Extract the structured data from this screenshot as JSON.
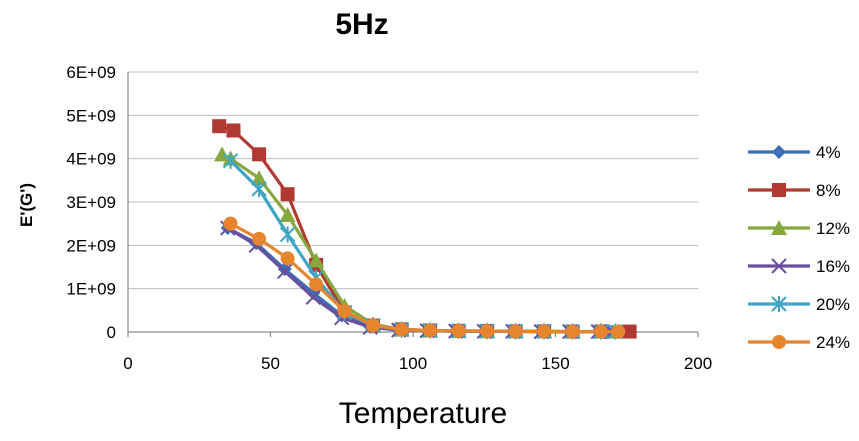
{
  "chart_data": {
    "type": "line",
    "title": "5Hz",
    "xlabel": "Temperature",
    "ylabel": "E'(G')",
    "xlim": [
      0,
      200
    ],
    "ylim": [
      0,
      6000000000
    ],
    "x_ticks": [
      "0",
      "50",
      "100",
      "150",
      "200"
    ],
    "y_ticks": [
      "0",
      "1E+09",
      "2E+09",
      "3E+09",
      "4E+09",
      "5E+09",
      "6E+09"
    ],
    "grid": "horizontal",
    "legend_position": "right",
    "series": [
      {
        "name": "4%",
        "color": "#3a6fb6",
        "marker": "diamond",
        "x": [
          35,
          45,
          55,
          65,
          75,
          85,
          95,
          105,
          115,
          125,
          135,
          145,
          155,
          165,
          170
        ],
        "y": [
          2400000000,
          2050000000,
          1450000000,
          900000000,
          380000000,
          120000000,
          50000000,
          30000000,
          20000000,
          15000000,
          15000000,
          10000000,
          10000000,
          10000000,
          10000000
        ]
      },
      {
        "name": "8%",
        "color": "#b03a32",
        "marker": "square",
        "x": [
          32,
          37,
          46,
          56,
          66,
          76,
          86,
          96,
          106,
          116,
          126,
          136,
          146,
          156,
          166,
          176
        ],
        "y": [
          4750000000,
          4650000000,
          4100000000,
          3180000000,
          1550000000,
          450000000,
          150000000,
          60000000,
          35000000,
          25000000,
          20000000,
          15000000,
          15000000,
          10000000,
          10000000,
          10000000
        ]
      },
      {
        "name": "12%",
        "color": "#86a83e",
        "marker": "triangle",
        "x": [
          33,
          36,
          46,
          56,
          66,
          76,
          86,
          96,
          106,
          116,
          126,
          136,
          146,
          156,
          166,
          171
        ],
        "y": [
          4100000000,
          4000000000,
          3550000000,
          2700000000,
          1650000000,
          600000000,
          180000000,
          60000000,
          35000000,
          25000000,
          20000000,
          15000000,
          15000000,
          10000000,
          10000000,
          10000000
        ]
      },
      {
        "name": "16%",
        "color": "#6a4fa0",
        "marker": "x",
        "x": [
          35,
          45,
          55,
          65,
          75,
          85,
          95,
          105,
          115,
          125,
          135,
          145,
          155,
          165,
          170
        ],
        "y": [
          2400000000,
          2000000000,
          1400000000,
          800000000,
          330000000,
          110000000,
          45000000,
          30000000,
          20000000,
          15000000,
          15000000,
          10000000,
          10000000,
          10000000,
          10000000
        ]
      },
      {
        "name": "20%",
        "color": "#3ea6c4",
        "marker": "asterisk",
        "x": [
          36,
          46,
          56,
          66,
          76,
          86,
          96,
          106,
          116,
          126,
          136,
          146,
          156,
          166,
          171
        ],
        "y": [
          3950000000,
          3300000000,
          2250000000,
          1250000000,
          450000000,
          150000000,
          55000000,
          35000000,
          25000000,
          20000000,
          15000000,
          15000000,
          10000000,
          10000000,
          10000000
        ]
      },
      {
        "name": "24%",
        "color": "#e7852f",
        "marker": "circle",
        "x": [
          36,
          46,
          56,
          66,
          76,
          86,
          96,
          106,
          116,
          126,
          136,
          146,
          156,
          166,
          172
        ],
        "y": [
          2500000000,
          2150000000,
          1700000000,
          1100000000,
          480000000,
          150000000,
          55000000,
          35000000,
          25000000,
          20000000,
          15000000,
          15000000,
          10000000,
          10000000,
          10000000
        ]
      }
    ]
  }
}
